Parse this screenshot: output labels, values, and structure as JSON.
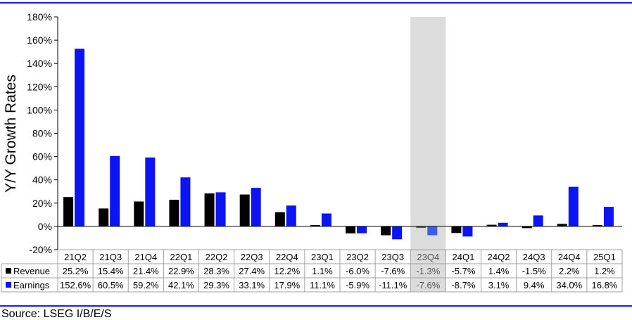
{
  "source": "Source: LSEG I/B/E/S",
  "chart_data": {
    "type": "bar",
    "ylabel": "Y/Y Growth Rates",
    "ylim": [
      -20,
      180
    ],
    "yticks": [
      -20,
      0,
      20,
      40,
      60,
      80,
      100,
      120,
      140,
      160,
      180
    ],
    "ytick_labels": [
      "-20%",
      "0%",
      "20%",
      "40%",
      "60%",
      "80%",
      "100%",
      "120%",
      "140%",
      "160%",
      "180%"
    ],
    "categories": [
      "21Q2",
      "21Q3",
      "21Q4",
      "22Q1",
      "22Q2",
      "22Q3",
      "22Q4",
      "23Q1",
      "23Q2",
      "23Q3",
      "23Q4",
      "24Q1",
      "24Q2",
      "24Q3",
      "24Q4",
      "25Q1"
    ],
    "highlighted_category": "23Q4",
    "series": [
      {
        "name": "Revenue",
        "color": "#000000",
        "values": [
          25.2,
          15.4,
          21.4,
          22.9,
          28.3,
          27.4,
          12.2,
          1.1,
          -6.0,
          -7.6,
          -1.3,
          -5.7,
          1.4,
          -1.5,
          2.2,
          1.2
        ],
        "labels": [
          "25.2%",
          "15.4%",
          "21.4%",
          "22.9%",
          "28.3%",
          "27.4%",
          "12.2%",
          "1.1%",
          "-6.0%",
          "-7.6%",
          "-1.3%",
          "-5.7%",
          "1.4%",
          "-1.5%",
          "2.2%",
          "1.2%"
        ]
      },
      {
        "name": "Earnings",
        "color": "#0a14f5",
        "values": [
          152.6,
          60.5,
          59.2,
          42.1,
          29.3,
          33.1,
          17.9,
          11.1,
          -5.9,
          -11.1,
          -7.6,
          -8.7,
          3.1,
          9.4,
          34.0,
          16.8
        ],
        "labels": [
          "152.6%",
          "60.5%",
          "59.2%",
          "42.1%",
          "29.3%",
          "33.1%",
          "17.9%",
          "11.1%",
          "-5.9%",
          "-11.1%",
          "-7.6%",
          "-8.7%",
          "3.1%",
          "9.4%",
          "34.0%",
          "16.8%"
        ]
      }
    ],
    "grid": false,
    "legend": "data-table-left"
  }
}
